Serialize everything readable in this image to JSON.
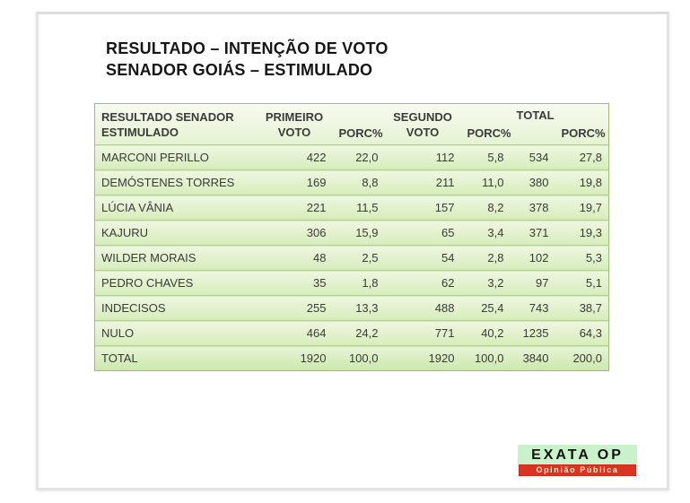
{
  "slide": {
    "title": {
      "line1": "RESULTADO – INTENÇÃO DE VOTO",
      "line2": "SENADOR GOIÁS – ESTIMULADO"
    }
  },
  "table": {
    "columns": {
      "result": [
        "RESULTADO SENADOR",
        "ESTIMULADO"
      ],
      "first_vote": [
        "PRIMEIRO",
        "VOTO"
      ],
      "porc1": "PORC%",
      "second_vote": [
        "SEGUNDO",
        "VOTO"
      ],
      "porc2": "PORC%",
      "total": "TOTAL",
      "porc3": "PORC%"
    },
    "rows": [
      {
        "name": "MARCONI PERILLO",
        "values": [
          "422",
          "22,0",
          "112",
          "5,8",
          "534",
          "27,8"
        ]
      },
      {
        "name": "DEMÓSTENES TORRES",
        "values": [
          "169",
          "8,8",
          "211",
          "11,0",
          "380",
          "19,8"
        ]
      },
      {
        "name": "LÚCIA VÂNIA",
        "values": [
          "221",
          "11,5",
          "157",
          "8,2",
          "378",
          "19,7"
        ]
      },
      {
        "name": "KAJURU",
        "values": [
          "306",
          "15,9",
          "65",
          "3,4",
          "371",
          "19,3"
        ]
      },
      {
        "name": "WILDER MORAIS",
        "values": [
          "48",
          "2,5",
          "54",
          "2,8",
          "102",
          "5,3"
        ]
      },
      {
        "name": "PEDRO CHAVES",
        "values": [
          "35",
          "1,8",
          "62",
          "3,2",
          "97",
          "5,1"
        ]
      },
      {
        "name": "INDECISOS",
        "values": [
          "255",
          "13,3",
          "488",
          "25,4",
          "743",
          "38,7"
        ]
      },
      {
        "name": "NULO",
        "values": [
          "464",
          "24,2",
          "771",
          "40,2",
          "1235",
          "64,3"
        ]
      },
      {
        "name": "TOTAL",
        "values": [
          "1920",
          "100,0",
          "1920",
          "100,0",
          "3840",
          "200,0"
        ]
      }
    ]
  },
  "logo": {
    "name": "EXATA OP",
    "subtitle": "Opinião Pública"
  },
  "colors": {
    "table_border": "#9fbe74",
    "row_separator": "#b6cc9f",
    "row_gradient_top": "#eef6e1",
    "row_gradient_bottom": "#d6ecba",
    "header_gradient_top": "#f7fbf0",
    "header_gradient_bottom": "#e5f2d2",
    "logo_green": "#c9f2cb",
    "logo_red": "#d93322",
    "logo_red_text": "#f6ebc3",
    "text": "#3a3a3a"
  },
  "chart_data": {
    "type": "table",
    "title": "RESULTADO – INTENÇÃO DE VOTO SENADOR GOIÁS – ESTIMULADO",
    "columns": [
      "RESULTADO SENADOR ESTIMULADO",
      "PRIMEIRO VOTO",
      "PORC%",
      "SEGUNDO VOTO",
      "PORC%",
      "TOTAL",
      "PORC%"
    ],
    "rows": [
      [
        "MARCONI PERILLO",
        422,
        22.0,
        112,
        5.8,
        534,
        27.8
      ],
      [
        "DEMÓSTENES TORRES",
        169,
        8.8,
        211,
        11.0,
        380,
        19.8
      ],
      [
        "LÚCIA VÂNIA",
        221,
        11.5,
        157,
        8.2,
        378,
        19.7
      ],
      [
        "KAJURU",
        306,
        15.9,
        65,
        3.4,
        371,
        19.3
      ],
      [
        "WILDER MORAIS",
        48,
        2.5,
        54,
        2.8,
        102,
        5.3
      ],
      [
        "PEDRO CHAVES",
        35,
        1.8,
        62,
        3.2,
        97,
        5.1
      ],
      [
        "INDECISOS",
        255,
        13.3,
        488,
        25.4,
        743,
        38.7
      ],
      [
        "NULO",
        464,
        24.2,
        771,
        40.2,
        1235,
        64.3
      ],
      [
        "TOTAL",
        1920,
        100.0,
        1920,
        100.0,
        3840,
        200.0
      ]
    ]
  }
}
